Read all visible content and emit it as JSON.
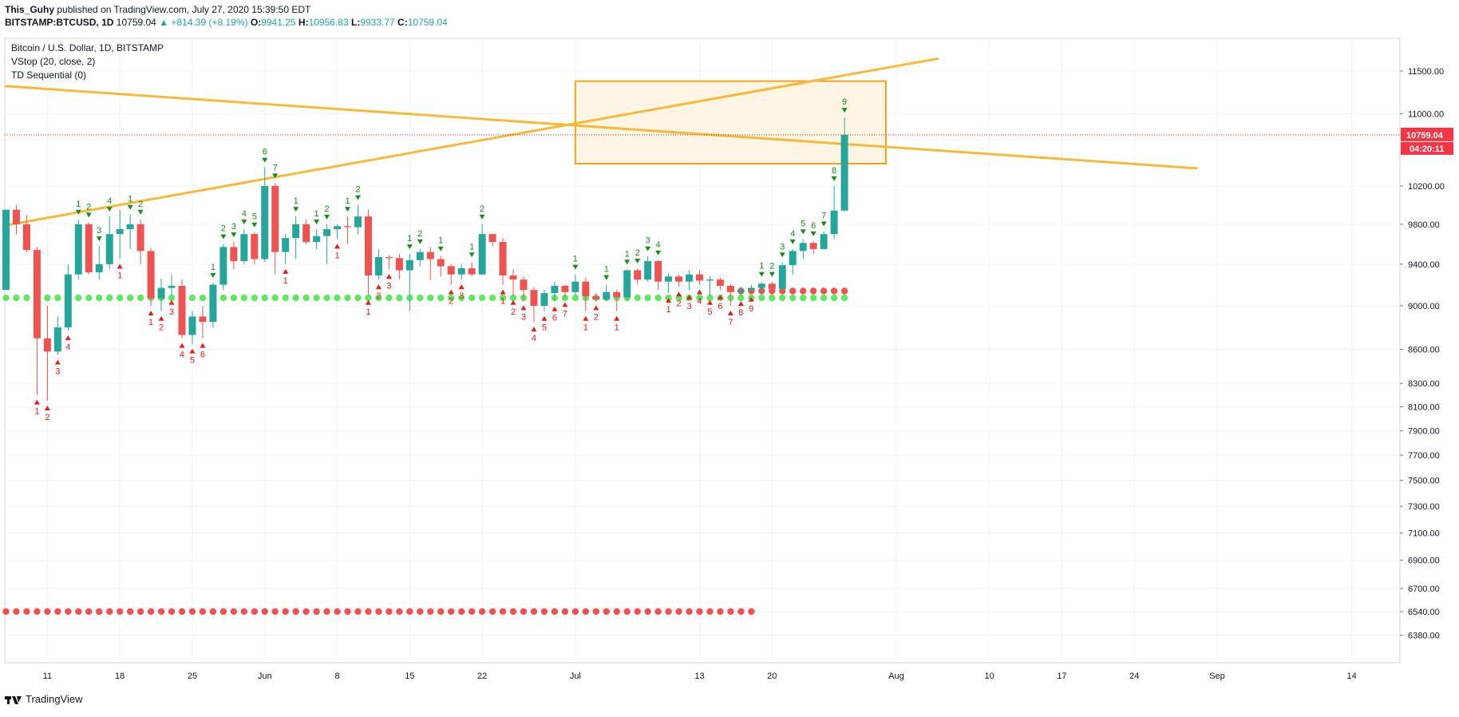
{
  "header": {
    "author": "This_Guhy",
    "published_text": "published on TradingView.com, July 27, 2020 15:39:50 EDT",
    "symbol": "BITSTAMP:BTCUSD, 1D",
    "last": "10759.04",
    "change": "▲ +814.39 (+8.19%)",
    "o_label": "O:",
    "o_val": "9941.25",
    "h_label": "H:",
    "h_val": "10956.83",
    "l_label": "L:",
    "l_val": "9933.77",
    "c_label": "C:",
    "c_val": "10759.04"
  },
  "legend": {
    "title": "Bitcoin / U.S. Dollar, 1D, BITSTAMP",
    "vstop": "VStop (20, close, 2)",
    "td": "TD Sequential (0)"
  },
  "footer": {
    "brand": "TradingView",
    "logo_icon": "tradingview-logo-icon"
  },
  "chart_data": {
    "type": "candlestick",
    "y_scale": "log",
    "ylim": [
      6200,
      11900
    ],
    "y_ticks": [
      6380,
      6540,
      6700,
      6900,
      7100,
      7300,
      7500,
      7700,
      7900,
      8100,
      8300,
      8600,
      9000,
      9400,
      9800,
      10200,
      11000,
      11500
    ],
    "x_ticks": [
      {
        "label": "11",
        "date": "2020-05-11"
      },
      {
        "label": "18",
        "date": "2020-05-18"
      },
      {
        "label": "25",
        "date": "2020-05-25"
      },
      {
        "label": "Jun",
        "date": "2020-06-01"
      },
      {
        "label": "8",
        "date": "2020-06-08"
      },
      {
        "label": "15",
        "date": "2020-06-15"
      },
      {
        "label": "22",
        "date": "2020-06-22"
      },
      {
        "label": "Jul",
        "date": "2020-07-01"
      },
      {
        "label": "13",
        "date": "2020-07-13"
      },
      {
        "label": "20",
        "date": "2020-07-20"
      },
      {
        "label": "Aug",
        "date": "2020-08-01"
      },
      {
        "label": "10",
        "date": "2020-08-10"
      },
      {
        "label": "17",
        "date": "2020-08-17"
      },
      {
        "label": "24",
        "date": "2020-08-24"
      },
      {
        "label": "Sep",
        "date": "2020-09-01"
      },
      {
        "label": "14",
        "date": "2020-09-14"
      }
    ],
    "price_label": {
      "value": 10759.04,
      "text": "10759.04",
      "countdown": "04:20:11"
    },
    "colors": {
      "up": "#26a69a",
      "down": "#ef5350",
      "trend": "#f5b93b",
      "box_border": "#f7a21b",
      "box_fill": "#fff3e0",
      "vstop_green": "#5fe85f",
      "vstop_red": "#ef5350",
      "label_bg": "#f23645"
    },
    "candles": [
      [
        "2020-05-07",
        9150,
        9950,
        9150,
        9950
      ],
      [
        "2020-05-08",
        9950,
        10000,
        9700,
        9800
      ],
      [
        "2020-05-09",
        9800,
        9900,
        9520,
        9540
      ],
      [
        "2020-05-10",
        9540,
        9570,
        8200,
        8700
      ],
      [
        "2020-05-11",
        8700,
        9000,
        8150,
        8580
      ],
      [
        "2020-05-12",
        8580,
        8900,
        8550,
        8800
      ],
      [
        "2020-05-13",
        8800,
        9400,
        8770,
        9300
      ],
      [
        "2020-05-14",
        9300,
        9850,
        9250,
        9800
      ],
      [
        "2020-05-15",
        9800,
        9820,
        9300,
        9320
      ],
      [
        "2020-05-16",
        9320,
        9580,
        9250,
        9400
      ],
      [
        "2020-05-17",
        9400,
        9880,
        9350,
        9700
      ],
      [
        "2020-05-18",
        9700,
        9950,
        9450,
        9750
      ],
      [
        "2020-05-19",
        9750,
        9900,
        9550,
        9800
      ],
      [
        "2020-05-20",
        9800,
        9850,
        9400,
        9530
      ],
      [
        "2020-05-21",
        9530,
        9560,
        9000,
        9070
      ],
      [
        "2020-05-22",
        9070,
        9260,
        8950,
        9170
      ],
      [
        "2020-05-23",
        9170,
        9300,
        9100,
        9190
      ],
      [
        "2020-05-24",
        9190,
        9250,
        8700,
        8730
      ],
      [
        "2020-05-25",
        8730,
        8950,
        8650,
        8900
      ],
      [
        "2020-05-26",
        8900,
        9000,
        8700,
        8850
      ],
      [
        "2020-05-27",
        8850,
        9220,
        8800,
        9200
      ],
      [
        "2020-05-28",
        9200,
        9600,
        9150,
        9570
      ],
      [
        "2020-05-29",
        9570,
        9620,
        9350,
        9430
      ],
      [
        "2020-05-30",
        9430,
        9750,
        9400,
        9700
      ],
      [
        "2020-05-31",
        9700,
        9720,
        9400,
        9450
      ],
      [
        "2020-06-01",
        9450,
        10400,
        9420,
        10200
      ],
      [
        "2020-06-02",
        10200,
        10230,
        9300,
        9520
      ],
      [
        "2020-06-03",
        9520,
        9700,
        9400,
        9660
      ],
      [
        "2020-06-04",
        9660,
        9880,
        9450,
        9800
      ],
      [
        "2020-06-05",
        9800,
        9850,
        9600,
        9620
      ],
      [
        "2020-06-06",
        9620,
        9750,
        9550,
        9680
      ],
      [
        "2020-06-07",
        9680,
        9800,
        9400,
        9750
      ],
      [
        "2020-06-08",
        9750,
        9800,
        9650,
        9780
      ],
      [
        "2020-06-09",
        9780,
        9880,
        9600,
        9770
      ],
      [
        "2020-06-10",
        9770,
        10000,
        9700,
        9880
      ],
      [
        "2020-06-11",
        9880,
        9950,
        9100,
        9290
      ],
      [
        "2020-06-12",
        9290,
        9550,
        9250,
        9470
      ],
      [
        "2020-06-13",
        9470,
        9490,
        9350,
        9460
      ],
      [
        "2020-06-14",
        9460,
        9500,
        9250,
        9340
      ],
      [
        "2020-06-15",
        9340,
        9500,
        8950,
        9440
      ],
      [
        "2020-06-16",
        9440,
        9550,
        9380,
        9520
      ],
      [
        "2020-06-17",
        9520,
        9570,
        9250,
        9450
      ],
      [
        "2020-06-18",
        9450,
        9480,
        9280,
        9380
      ],
      [
        "2020-06-19",
        9380,
        9400,
        9200,
        9300
      ],
      [
        "2020-06-20",
        9300,
        9400,
        9250,
        9360
      ],
      [
        "2020-06-21",
        9360,
        9420,
        9280,
        9300
      ],
      [
        "2020-06-22",
        9300,
        9800,
        9290,
        9700
      ],
      [
        "2020-06-23",
        9700,
        9700,
        9580,
        9620
      ],
      [
        "2020-06-24",
        9620,
        9660,
        9200,
        9290
      ],
      [
        "2020-06-25",
        9290,
        9350,
        9100,
        9250
      ],
      [
        "2020-06-26",
        9250,
        9280,
        9050,
        9150
      ],
      [
        "2020-06-27",
        9150,
        9180,
        8850,
        9000
      ],
      [
        "2020-06-28",
        9000,
        9150,
        8950,
        9120
      ],
      [
        "2020-06-29",
        9120,
        9230,
        9040,
        9190
      ],
      [
        "2020-06-30",
        9190,
        9200,
        9080,
        9130
      ],
      [
        "2020-07-01",
        9130,
        9300,
        9100,
        9230
      ],
      [
        "2020-07-02",
        9230,
        9270,
        8950,
        9090
      ],
      [
        "2020-07-03",
        9090,
        9120,
        9050,
        9060
      ],
      [
        "2020-07-04",
        9060,
        9200,
        9050,
        9130
      ],
      [
        "2020-07-05",
        9130,
        9150,
        8950,
        9080
      ],
      [
        "2020-07-06",
        9080,
        9350,
        9050,
        9340
      ],
      [
        "2020-07-07",
        9340,
        9360,
        9200,
        9250
      ],
      [
        "2020-07-08",
        9250,
        9480,
        9230,
        9430
      ],
      [
        "2020-07-09",
        9430,
        9440,
        9150,
        9230
      ],
      [
        "2020-07-10",
        9230,
        9310,
        9120,
        9280
      ],
      [
        "2020-07-11",
        9280,
        9300,
        9180,
        9230
      ],
      [
        "2020-07-12",
        9230,
        9340,
        9150,
        9300
      ],
      [
        "2020-07-13",
        9300,
        9340,
        9200,
        9240
      ],
      [
        "2020-07-14",
        9240,
        9280,
        9100,
        9250
      ],
      [
        "2020-07-15",
        9250,
        9270,
        9150,
        9190
      ],
      [
        "2020-07-16",
        9190,
        9210,
        9000,
        9130
      ],
      [
        "2020-07-17",
        9130,
        9180,
        9090,
        9150
      ],
      [
        "2020-07-18",
        9150,
        9200,
        9130,
        9170
      ],
      [
        "2020-07-19",
        9170,
        9230,
        9110,
        9210
      ],
      [
        "2020-07-20",
        9210,
        9230,
        9120,
        9160
      ],
      [
        "2020-07-21",
        9160,
        9420,
        9150,
        9390
      ],
      [
        "2020-07-22",
        9390,
        9550,
        9300,
        9530
      ],
      [
        "2020-07-23",
        9530,
        9650,
        9450,
        9610
      ],
      [
        "2020-07-24",
        9610,
        9630,
        9500,
        9550
      ],
      [
        "2020-07-25",
        9550,
        9730,
        9540,
        9700
      ],
      [
        "2020-07-26",
        9700,
        10200,
        9650,
        9941
      ],
      [
        "2020-07-27",
        9941,
        10956,
        9933,
        10759
      ]
    ],
    "td_labels": [
      [
        "2020-05-10",
        "buy",
        "1"
      ],
      [
        "2020-05-11",
        "buy",
        "2"
      ],
      [
        "2020-05-12",
        "buy",
        "3"
      ],
      [
        "2020-05-13",
        "buy",
        "4"
      ],
      [
        "2020-05-14",
        "sell",
        "1"
      ],
      [
        "2020-05-15",
        "sell",
        "2"
      ],
      [
        "2020-05-16",
        "sell",
        "3"
      ],
      [
        "2020-05-17",
        "sell",
        "4"
      ],
      [
        "2020-05-18",
        "buy",
        "1"
      ],
      [
        "2020-05-19",
        "sell",
        "1"
      ],
      [
        "2020-05-20",
        "sell",
        "2"
      ],
      [
        "2020-05-21",
        "buy",
        "1"
      ],
      [
        "2020-05-22",
        "buy",
        "2"
      ],
      [
        "2020-05-23",
        "buy",
        "3"
      ],
      [
        "2020-05-24",
        "buy",
        "4"
      ],
      [
        "2020-05-25",
        "buy",
        "5"
      ],
      [
        "2020-05-26",
        "buy",
        "6"
      ],
      [
        "2020-05-27",
        "sell",
        "1"
      ],
      [
        "2020-05-28",
        "sell",
        "2"
      ],
      [
        "2020-05-29",
        "sell",
        "3"
      ],
      [
        "2020-05-30",
        "sell",
        "4"
      ],
      [
        "2020-05-31",
        "sell",
        "5"
      ],
      [
        "2020-06-01",
        "sell",
        "6"
      ],
      [
        "2020-06-02",
        "sell",
        "7"
      ],
      [
        "2020-06-03",
        "buy",
        "1"
      ],
      [
        "2020-06-04",
        "sell",
        "1"
      ],
      [
        "2020-06-06",
        "sell",
        "1"
      ],
      [
        "2020-06-07",
        "sell",
        "2"
      ],
      [
        "2020-06-08",
        "buy",
        "1"
      ],
      [
        "2020-06-09",
        "sell",
        "1"
      ],
      [
        "2020-06-10",
        "sell",
        "2"
      ],
      [
        "2020-06-11",
        "buy",
        "1"
      ],
      [
        "2020-06-12",
        "buy",
        "2"
      ],
      [
        "2020-06-13",
        "buy",
        "3"
      ],
      [
        "2020-06-15",
        "sell",
        "1"
      ],
      [
        "2020-06-16",
        "sell",
        "2"
      ],
      [
        "2020-06-18",
        "sell",
        "1"
      ],
      [
        "2020-06-19",
        "buy",
        "2"
      ],
      [
        "2020-06-20",
        "buy",
        "3"
      ],
      [
        "2020-06-21",
        "sell",
        "1"
      ],
      [
        "2020-06-22",
        "sell",
        "2"
      ],
      [
        "2020-06-24",
        "buy",
        "1"
      ],
      [
        "2020-06-25",
        "buy",
        "2"
      ],
      [
        "2020-06-26",
        "buy",
        "3"
      ],
      [
        "2020-06-27",
        "buy",
        "4"
      ],
      [
        "2020-06-28",
        "buy",
        "5"
      ],
      [
        "2020-06-29",
        "buy",
        "6"
      ],
      [
        "2020-06-30",
        "buy",
        "7"
      ],
      [
        "2020-07-01",
        "sell",
        "1"
      ],
      [
        "2020-07-02",
        "buy",
        "1"
      ],
      [
        "2020-07-03",
        "buy",
        "2"
      ],
      [
        "2020-07-04",
        "sell",
        "1"
      ],
      [
        "2020-07-05",
        "buy",
        "1"
      ],
      [
        "2020-07-06",
        "sell",
        "1"
      ],
      [
        "2020-07-07",
        "sell",
        "2"
      ],
      [
        "2020-07-08",
        "sell",
        "3"
      ],
      [
        "2020-07-09",
        "sell",
        "4"
      ],
      [
        "2020-07-10",
        "buy",
        "1"
      ],
      [
        "2020-07-11",
        "buy",
        "2"
      ],
      [
        "2020-07-12",
        "buy",
        "3"
      ],
      [
        "2020-07-13",
        "buy",
        "4"
      ],
      [
        "2020-07-14",
        "buy",
        "5"
      ],
      [
        "2020-07-15",
        "buy",
        "6"
      ],
      [
        "2020-07-16",
        "buy",
        "7"
      ],
      [
        "2020-07-17",
        "buy",
        "8"
      ],
      [
        "2020-07-18",
        "buy",
        "9"
      ],
      [
        "2020-07-19",
        "sell",
        "1"
      ],
      [
        "2020-07-20",
        "sell",
        "2"
      ],
      [
        "2020-07-21",
        "sell",
        "3"
      ],
      [
        "2020-07-22",
        "sell",
        "4"
      ],
      [
        "2020-07-23",
        "sell",
        "5"
      ],
      [
        "2020-07-24",
        "sell",
        "6"
      ],
      [
        "2020-07-25",
        "sell",
        "7"
      ],
      [
        "2020-07-26",
        "sell",
        "8"
      ],
      [
        "2020-07-27",
        "sell",
        "9"
      ]
    ],
    "vstop_green": {
      "value": 9075,
      "from": "2020-05-07",
      "to": "2020-07-27"
    },
    "vstop_red_bottom": {
      "value": 6540,
      "from": "2020-05-07",
      "to": "2020-07-18"
    },
    "vstop_red_top": {
      "value": 9140,
      "from": "2020-07-17",
      "to": "2020-07-27"
    },
    "trendlines": [
      {
        "from": [
          "2020-05-07",
          11320
        ],
        "to": [
          "2020-08-30",
          10390
        ]
      },
      {
        "from": [
          "2020-05-07",
          9790
        ],
        "to": [
          "2020-08-05",
          11650
        ]
      }
    ],
    "box": {
      "from": "2020-07-01",
      "to": "2020-07-31",
      "top": 11380,
      "bottom": 10440
    }
  }
}
